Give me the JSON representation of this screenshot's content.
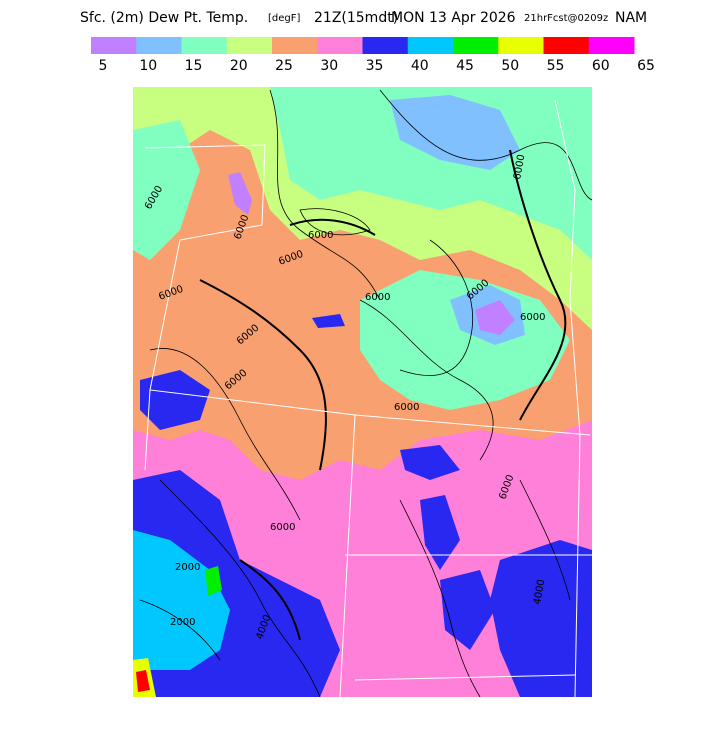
{
  "header": {
    "title_parts": [
      "Sfc. (2m) Dew Pt. Temp.",
      "[degF]",
      "21Z(15mdt)",
      "MON 13 Apr 2026",
      "21hrFcst@0209z",
      "NAM"
    ]
  },
  "colorbar": {
    "colors": [
      "#c080ff",
      "#80c0ff",
      "#80ffc0",
      "#c8ff80",
      "#f8a070",
      "#ff80d8",
      "#2828f0",
      "#00c8ff",
      "#00ee00",
      "#e8ff00",
      "#ff0000",
      "#ff00ff"
    ],
    "labels": [
      5,
      10,
      15,
      20,
      25,
      30,
      35,
      40,
      45,
      50,
      55,
      60,
      65
    ]
  },
  "map": {
    "contour_labels": [
      "6000",
      "6000",
      "6000",
      "6000",
      "6000",
      "6000",
      "6000",
      "6000",
      "6000",
      "6000",
      "6000",
      "6000",
      "6000",
      "6000",
      "4000",
      "4000",
      "2000",
      "2000"
    ]
  }
}
